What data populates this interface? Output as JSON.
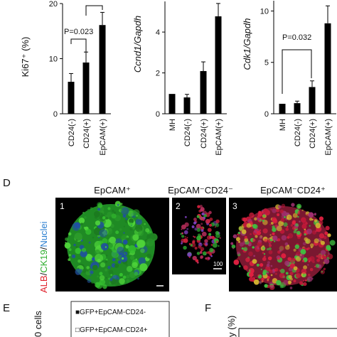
{
  "chart_data": [
    {
      "type": "bar",
      "ylabel": "Ki67⁺ (%)",
      "categories": [
        "CD24(-)",
        "CD24(+)",
        "EpCAM(+)"
      ],
      "values": [
        5.8,
        9.3,
        16.1
      ],
      "errors": [
        1.5,
        1.9,
        2.3
      ],
      "color": "#000000",
      "ylim": [
        0,
        20
      ],
      "yticks": [
        0,
        10,
        20
      ],
      "annotations": [
        "P=0.023"
      ]
    },
    {
      "type": "bar",
      "ylabel": "Ccnd1/Gapdh",
      "categories": [
        "MH",
        "CD24(-)",
        "CD24(+)",
        "EpCAM(+)"
      ],
      "values": [
        0.97,
        0.8,
        2.09,
        4.77
      ],
      "errors": [
        0,
        0.15,
        0.45,
        0.63
      ],
      "color": "#000000",
      "ylim": [
        0,
        5.5
      ],
      "yticks": [
        0,
        2,
        4
      ],
      "annotations": []
    },
    {
      "type": "bar",
      "ylabel": "Cdk1/Gapdh",
      "categories": [
        "MH",
        "CD24(-)",
        "CD24(+)",
        "EpCAM(+)"
      ],
      "values": [
        0.97,
        1.03,
        2.6,
        8.8
      ],
      "errors": [
        0,
        0.2,
        0.6,
        1.7
      ],
      "color": "#000000",
      "ylim": [
        0,
        11
      ],
      "yticks": [
        0,
        5,
        10
      ],
      "annotations": [
        "P=0.032"
      ]
    }
  ],
  "panel_d": {
    "label": "D",
    "stain": [
      "ALB",
      "/",
      "CK19",
      "/",
      "Nuclei"
    ],
    "images": [
      {
        "title": "EpCAM⁺",
        "number": "1"
      },
      {
        "title": "EpCAM⁻CD24⁻",
        "number": "2",
        "scale": "100"
      },
      {
        "title": "EpCAM⁻CD24⁺",
        "number": "3"
      }
    ]
  },
  "panel_e": {
    "label": "E",
    "ylabel": "0 cells",
    "legend": [
      "■GFP+EpCAM-CD24-",
      "□GFP+EpCAM-CD24+"
    ]
  },
  "panel_f": {
    "label": "F",
    "ylabel": "y (%)"
  }
}
